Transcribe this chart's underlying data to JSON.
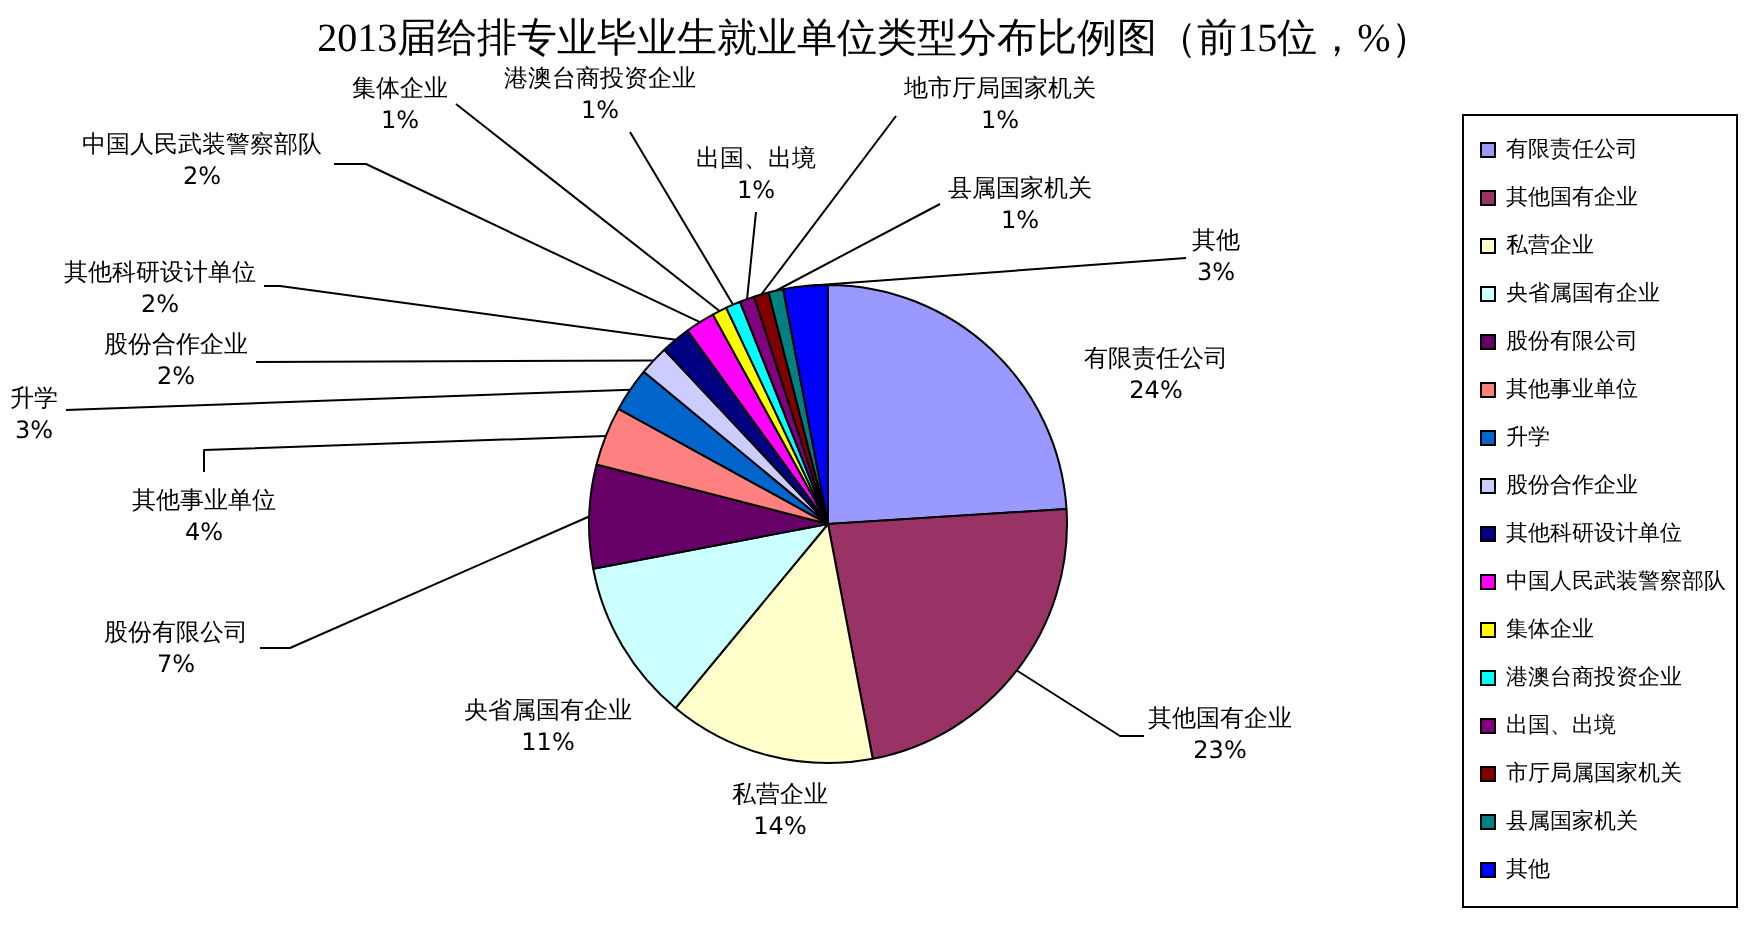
{
  "chart_data": {
    "type": "pie",
    "title": "2013届给排专业毕业生就业单位类型分布比例图（前15位，%）",
    "categories": [
      "有限责任公司",
      "其他国有企业",
      "私营企业",
      "央省属国有企业",
      "股份有限公司",
      "其他事业单位",
      "升学",
      "股份合作企业",
      "其他科研设计单位",
      "中国人民武装警察部队",
      "集体企业",
      "港澳台商投资企业",
      "出国、出境",
      "市厅局属国家机关",
      "县属国家机关",
      "其他"
    ],
    "values": [
      24,
      23,
      14,
      11,
      7,
      4,
      3,
      2,
      2,
      2,
      1,
      1,
      1,
      1,
      1,
      3
    ],
    "colors": [
      "#9999ff",
      "#993366",
      "#ffffcc",
      "#ccffff",
      "#660066",
      "#ff8080",
      "#0066cc",
      "#ccccff",
      "#000080",
      "#ff00ff",
      "#ffff00",
      "#00ffff",
      "#800080",
      "#800000",
      "#008080",
      "#0000ff"
    ],
    "value_labels": [
      "有限责任公司\n24%",
      "其他国有企业\n23%",
      "私营企业\n14%",
      "央省属国有企业\n11%",
      "股份有限公司\n7%",
      "其他事业单位\n4%",
      "升学\n3%",
      "股份合作企业\n2%",
      "其他科研设计单位\n2%",
      "中国人民武装警察部队\n2%",
      "集体企业\n1%",
      "港澳台商投资企业\n1%",
      "出国、出境\n1%",
      "地市厅局国家机关\n1%",
      "县属国家机关\n1%",
      "其他\n3%"
    ],
    "legend": "right"
  }
}
